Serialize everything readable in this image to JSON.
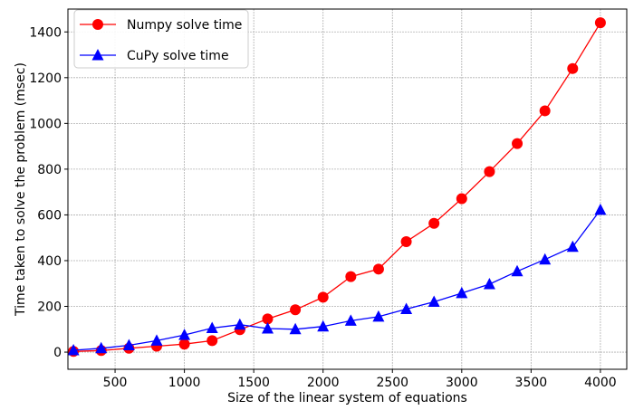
{
  "chart_data": {
    "type": "line",
    "title": "",
    "xlabel": "Size of the linear system of equations",
    "ylabel": "Time taken to solve the problem (msec)",
    "xlim": [
      160,
      4190
    ],
    "ylim": [
      -75,
      1500
    ],
    "xticks": [
      500,
      1000,
      1500,
      2000,
      2500,
      3000,
      3500,
      4000
    ],
    "yticks": [
      0,
      200,
      400,
      600,
      800,
      1000,
      1200,
      1400
    ],
    "grid": true,
    "legend_position": "top-left",
    "x": [
      200,
      400,
      600,
      800,
      1000,
      1200,
      1400,
      1600,
      1800,
      2000,
      2200,
      2400,
      2600,
      2800,
      3000,
      3200,
      3400,
      3600,
      3800,
      4000
    ],
    "series": [
      {
        "name": "Numpy solve time",
        "color": "#ff0000",
        "marker": "circle",
        "values": [
          3,
          7,
          17,
          26,
          35,
          50,
          98,
          145,
          185,
          240,
          330,
          363,
          483,
          563,
          671,
          789,
          912,
          1055,
          1240,
          1440
        ]
      },
      {
        "name": "CuPy solve time",
        "color": "#0000ff",
        "marker": "triangle",
        "values": [
          8,
          17,
          30,
          50,
          75,
          105,
          120,
          103,
          100,
          112,
          137,
          155,
          188,
          220,
          258,
          297,
          353,
          405,
          460,
          622
        ]
      }
    ]
  }
}
